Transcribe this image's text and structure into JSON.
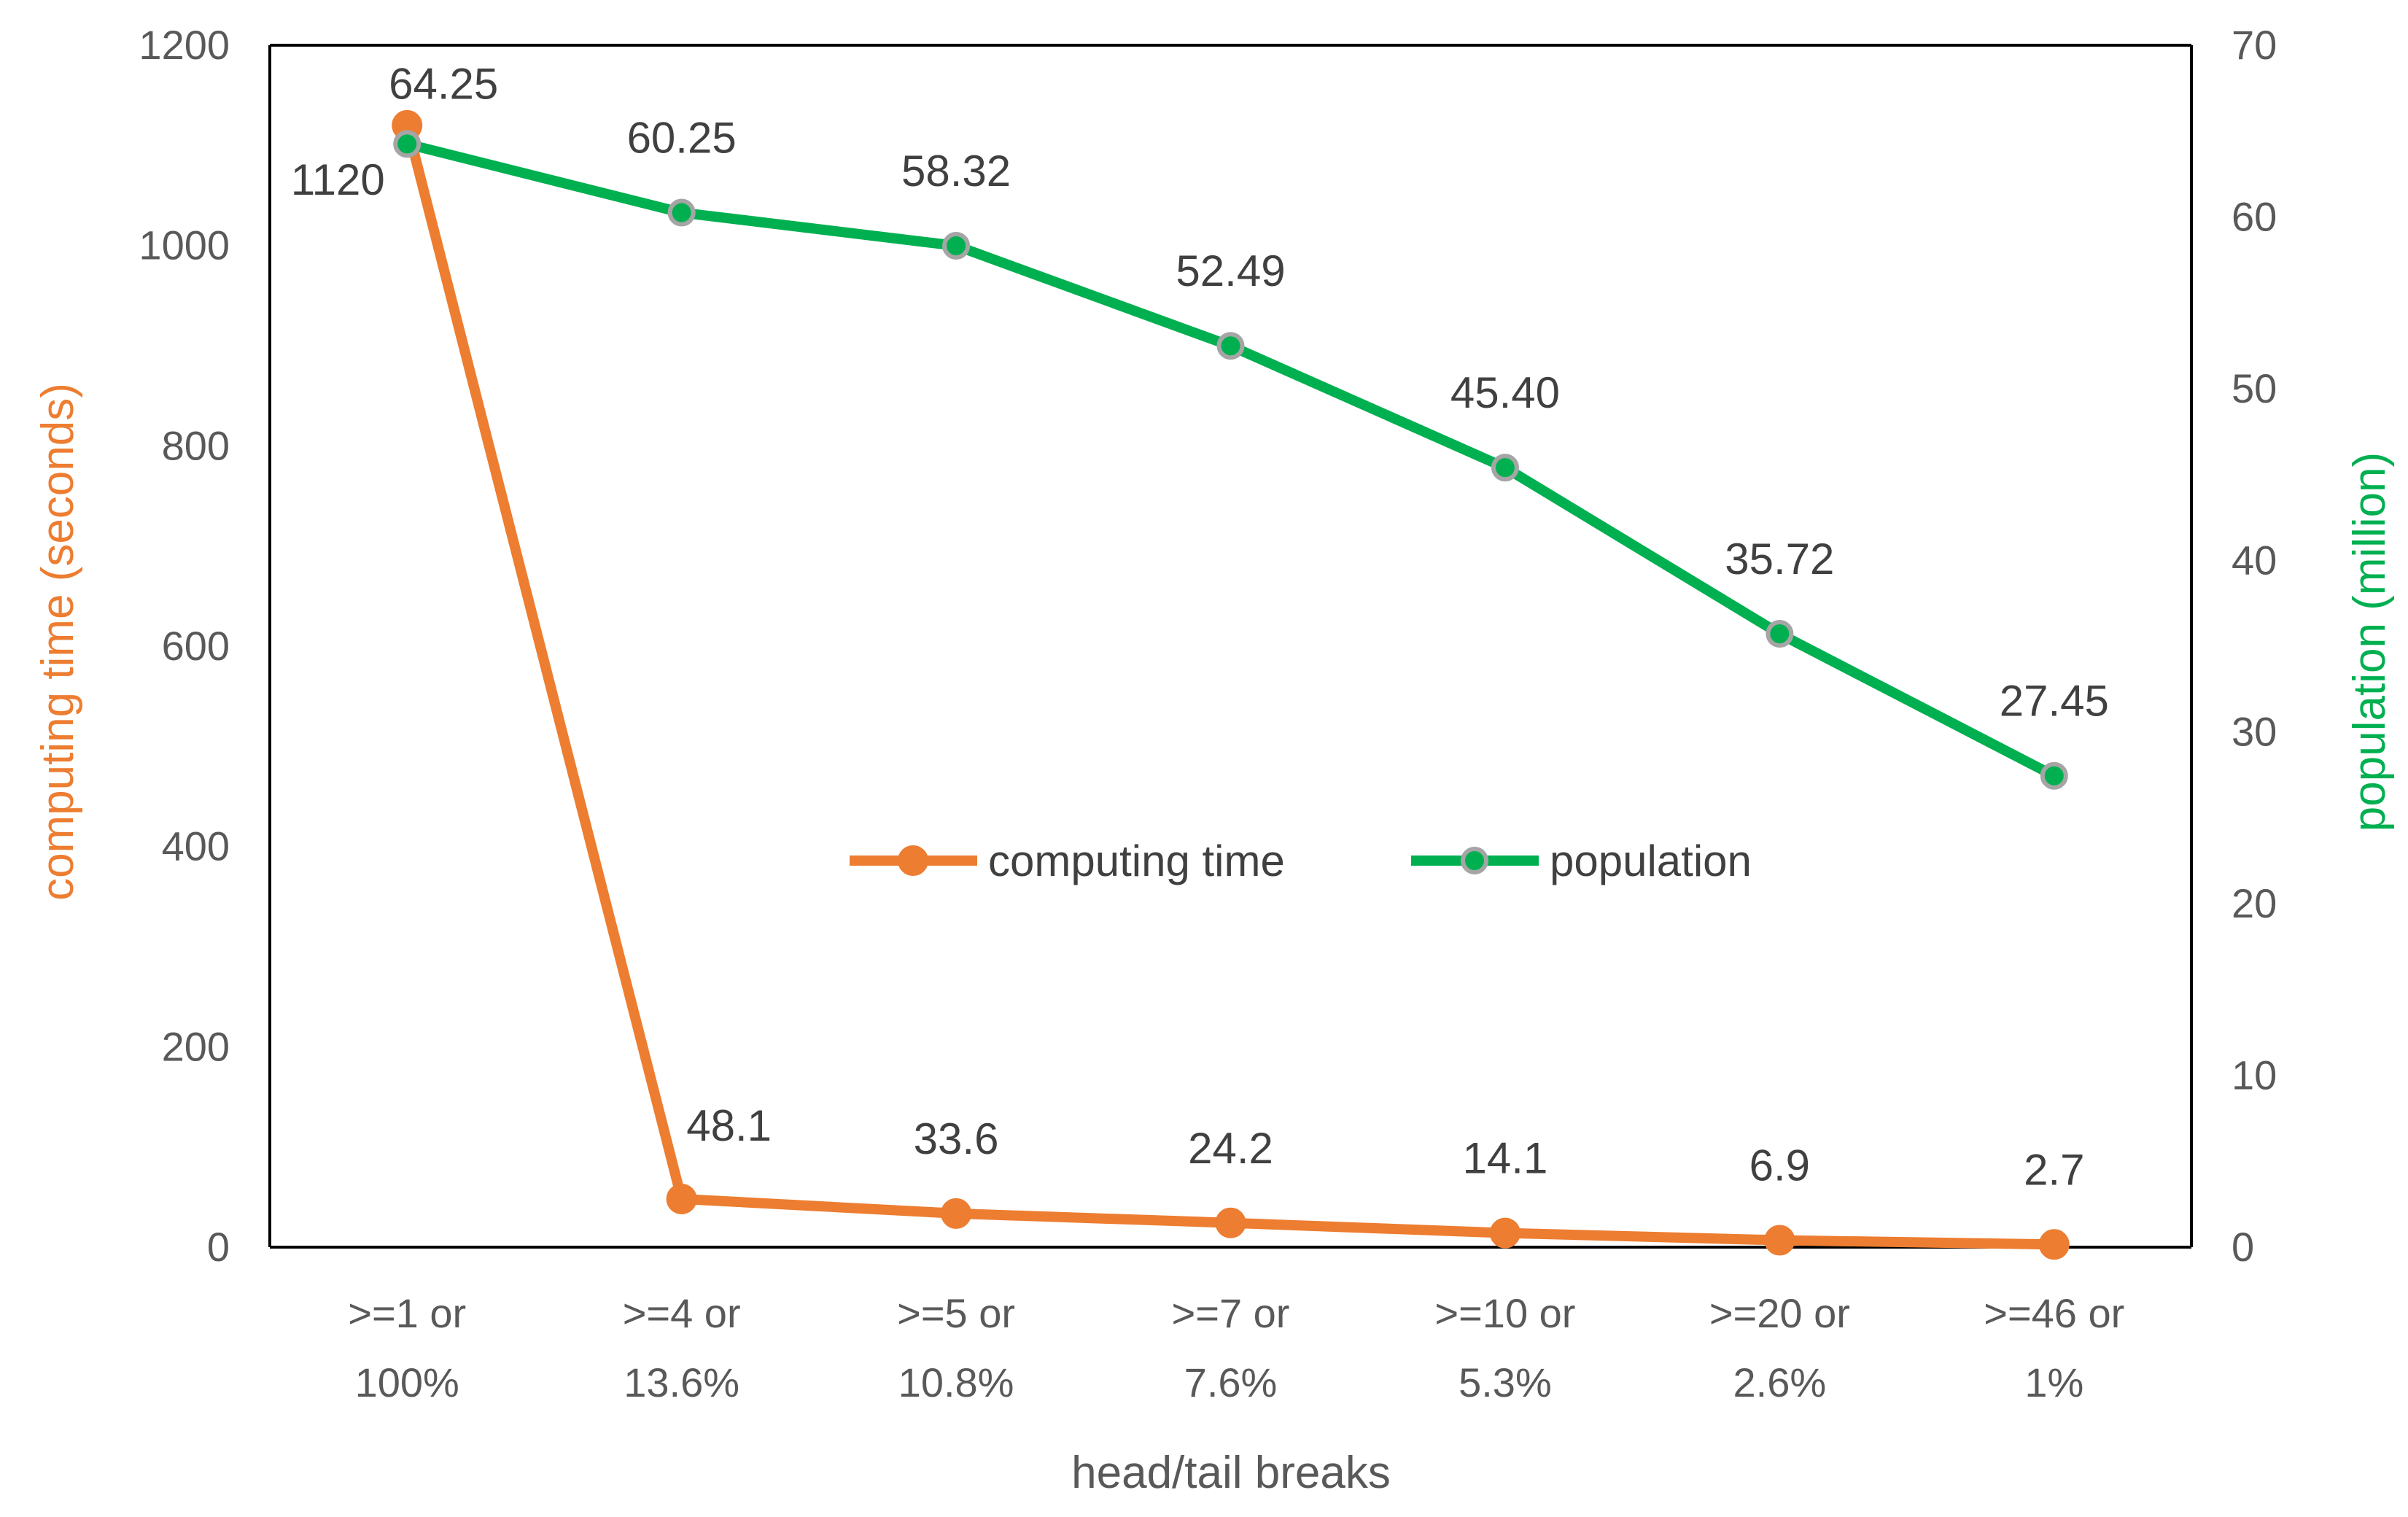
{
  "chart_data": {
    "type": "line",
    "title": "",
    "categories": [
      [
        ">=1 or",
        "100%"
      ],
      [
        ">=4 or",
        "13.6%"
      ],
      [
        ">=5 or",
        "10.8%"
      ],
      [
        ">=7 or",
        "7.6%"
      ],
      [
        ">=10 or",
        "5.3%"
      ],
      [
        ">=20 or",
        "2.6%"
      ],
      [
        ">=46 or",
        "1%"
      ]
    ],
    "xlabel": "head/tail breaks",
    "ylabel_left": "computing time (seconds)",
    "ylabel_right": "population (million)",
    "ylim_left": [
      0,
      1200
    ],
    "ylim_right": [
      0,
      70
    ],
    "yticks_left": [
      0,
      200,
      400,
      600,
      800,
      1000,
      1200
    ],
    "yticks_right": [
      0,
      10,
      20,
      30,
      40,
      50,
      60,
      70
    ],
    "legend_position": "center",
    "series": [
      {
        "name": "computing time",
        "axis": "left",
        "color": "#ED7D31",
        "values": [
          1120,
          48.1,
          33.6,
          24.2,
          14.1,
          6.9,
          2.7
        ],
        "labels": [
          "1120",
          "48.1",
          "33.6",
          "24.2",
          "14.1",
          "6.9",
          "2.7"
        ]
      },
      {
        "name": "population",
        "axis": "right",
        "color": "#00B050",
        "marker_edge_color": "#A5A5A5",
        "values": [
          64.25,
          60.25,
          58.32,
          52.49,
          45.4,
          35.72,
          27.45
        ],
        "labels": [
          "64.25",
          "60.25",
          "58.32",
          "52.49",
          "45.40",
          "35.72",
          "27.45"
        ]
      }
    ]
  }
}
